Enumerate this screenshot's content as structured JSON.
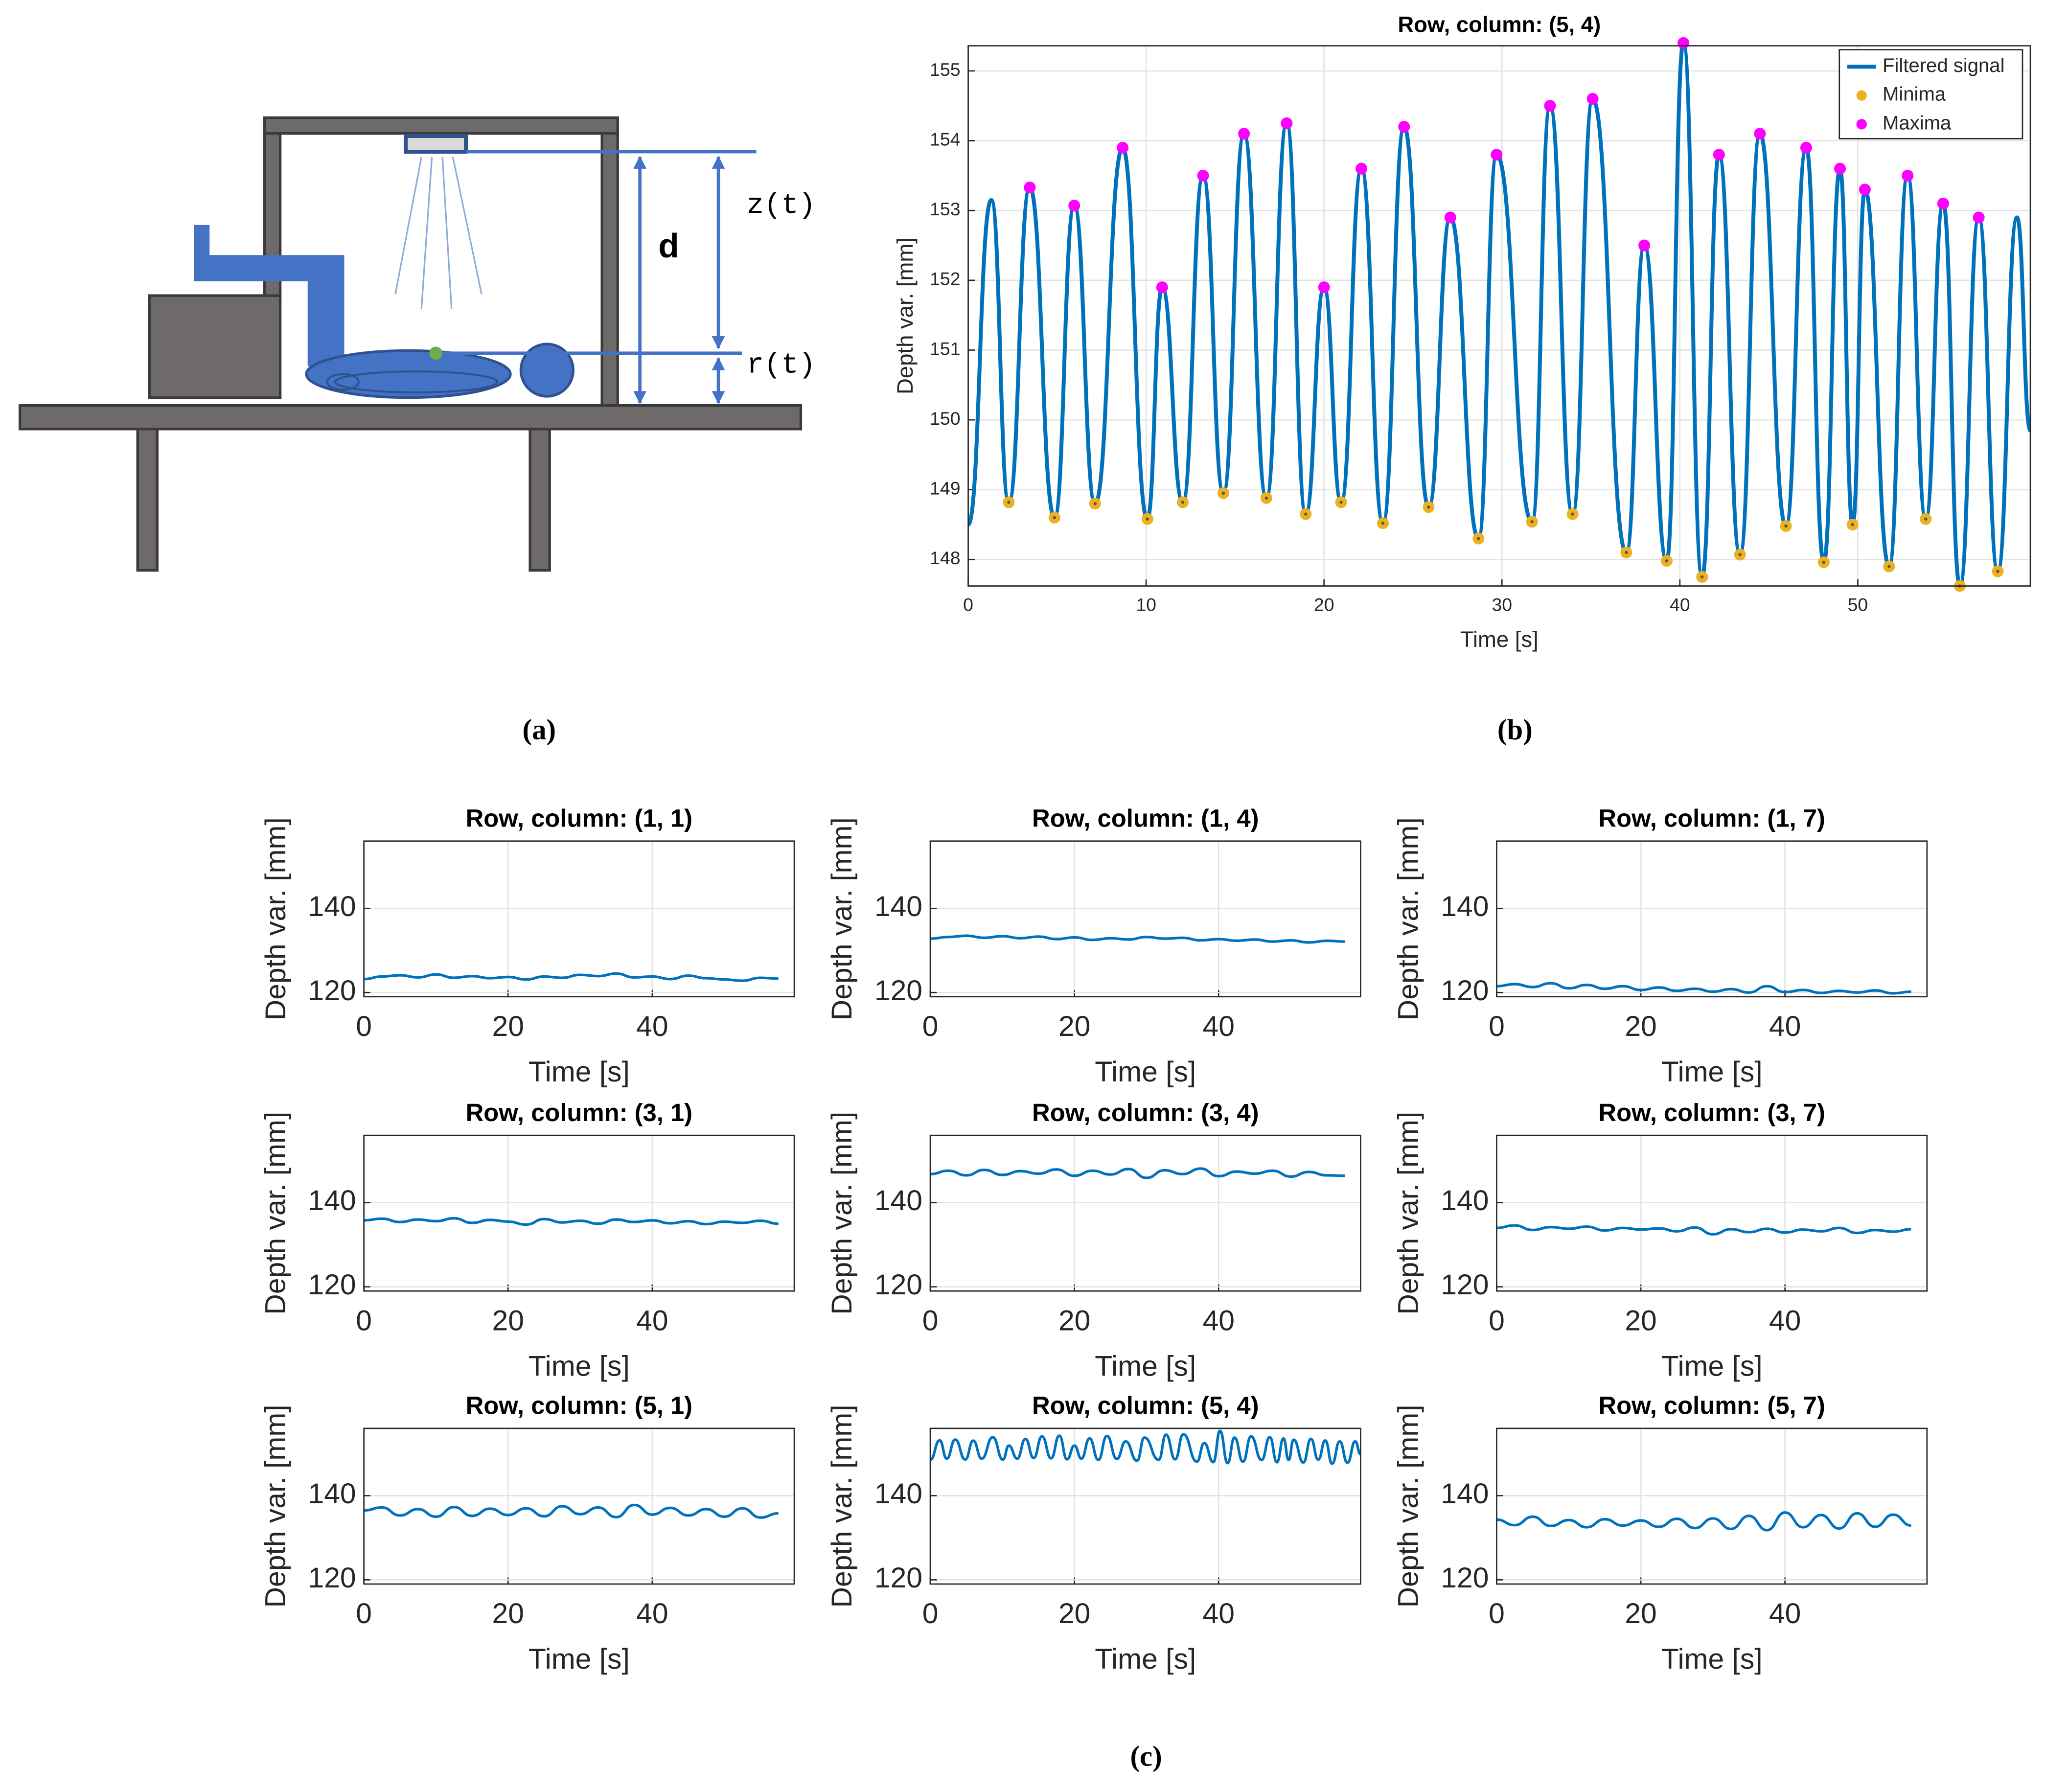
{
  "diagram": {
    "labels": [
      "d",
      "z(t)",
      "r(t)"
    ]
  },
  "panel_labels": [
    "(a)",
    "(b)",
    "(c)"
  ],
  "chart_data": [
    {
      "type": "line",
      "title": "Row, column: (5, 4)",
      "x_label": "Time [s]",
      "y_label": "Depth var. [mm]",
      "xlim": [
        0,
        59.7
      ],
      "ylim": [
        147.62,
        155.36
      ],
      "xticks": [
        0,
        10,
        20,
        30,
        40,
        50
      ],
      "yticks": [
        148,
        149,
        150,
        151,
        152,
        153,
        154,
        155
      ],
      "grid": true,
      "legend": "upper right",
      "series": [
        {
          "name": "Filtered signal",
          "style": "line",
          "color": "#0072BD",
          "x": [
            0,
            1.3,
            2.28,
            3.46,
            4.85,
            5.96,
            7.13,
            8.68,
            10.07,
            10.9,
            12.06,
            13.2,
            14.34,
            15.5,
            16.76,
            17.9,
            18.97,
            20.0,
            20.96,
            22.1,
            23.31,
            24.5,
            25.88,
            27.1,
            28.68,
            29.7,
            31.69,
            32.7,
            33.97,
            35.1,
            36.99,
            38.0,
            39.26,
            40.2,
            41.25,
            42.2,
            43.38,
            44.5,
            45.96,
            47.1,
            48.09,
            49.0,
            49.71,
            50.4,
            51.76,
            52.8,
            53.82,
            54.8,
            55.74,
            56.8,
            57.87,
            58.95,
            59.7
          ],
          "values": [
            148.5,
            153.15,
            148.82,
            153.33,
            148.6,
            153.07,
            148.8,
            153.9,
            148.58,
            151.9,
            148.82,
            153.5,
            148.95,
            154.1,
            148.88,
            154.25,
            148.65,
            151.9,
            148.82,
            153.6,
            148.52,
            154.2,
            148.75,
            152.9,
            148.3,
            153.8,
            148.54,
            154.5,
            148.65,
            154.6,
            148.1,
            152.5,
            147.98,
            155.4,
            147.75,
            153.8,
            148.07,
            154.1,
            148.48,
            153.9,
            147.96,
            153.6,
            148.5,
            153.3,
            147.9,
            153.5,
            148.58,
            153.1,
            147.62,
            152.9,
            147.83,
            152.9,
            149.85
          ]
        },
        {
          "name": "Minima",
          "style": "markers",
          "color": "#EDB120",
          "x": [
            2.28,
            4.85,
            7.13,
            10.07,
            12.06,
            14.34,
            16.76,
            18.97,
            20.96,
            23.31,
            25.88,
            28.68,
            31.69,
            33.97,
            36.99,
            39.26,
            41.25,
            43.38,
            45.96,
            48.09,
            49.71,
            51.76,
            53.82,
            55.74,
            57.87
          ],
          "values": [
            148.82,
            148.6,
            148.8,
            148.58,
            148.82,
            148.95,
            148.88,
            148.65,
            148.82,
            148.52,
            148.75,
            148.3,
            148.54,
            148.65,
            148.1,
            147.98,
            147.75,
            148.07,
            148.48,
            147.96,
            148.5,
            147.9,
            148.58,
            147.62,
            147.83
          ]
        },
        {
          "name": "Maxima",
          "style": "markers",
          "color": "#FF00FF",
          "x": [
            3.46,
            5.96,
            8.68,
            10.9,
            13.2,
            15.5,
            17.9,
            20.0,
            22.1,
            24.5,
            27.1,
            29.7,
            32.7,
            35.1,
            38.0,
            40.2,
            42.2,
            44.5,
            47.1,
            49.0,
            50.4,
            52.8,
            54.8,
            56.8
          ],
          "values": [
            153.33,
            153.07,
            153.9,
            151.9,
            153.5,
            154.1,
            154.25,
            151.9,
            153.6,
            154.2,
            152.9,
            153.8,
            154.5,
            154.6,
            152.5,
            155.4,
            153.8,
            154.1,
            153.9,
            153.6,
            153.3,
            153.5,
            153.1,
            152.9
          ]
        }
      ]
    },
    {
      "type": "line",
      "title": "Row, column: (1, 1)",
      "x_label": "Time [s]",
      "y_label": "Depth var. [mm]",
      "color": "#0072BD",
      "xlim": [
        0,
        59.7
      ],
      "ylim": [
        119,
        156
      ],
      "xticks": [
        0,
        20,
        40
      ],
      "yticks": [
        120,
        140
      ],
      "grid": true,
      "x": [
        0,
        2.5,
        5,
        7.5,
        10,
        12.5,
        15,
        17.5,
        20,
        22.5,
        25,
        27.5,
        30,
        32.5,
        35,
        37.5,
        40,
        42.5,
        45,
        47.5,
        50,
        52.5,
        55,
        57.5
      ],
      "values": [
        123.2,
        123.8,
        124.1,
        123.6,
        124.3,
        123.5,
        123.9,
        123.4,
        123.7,
        123.1,
        123.8,
        123.5,
        124.2,
        123.9,
        124.5,
        123.6,
        123.8,
        123.2,
        124.0,
        123.4,
        123.1,
        122.8,
        123.5,
        123.3
      ]
    },
    {
      "type": "line",
      "title": "Row, column: (1, 4)",
      "x_label": "Time [s]",
      "y_label": "Depth var. [mm]",
      "color": "#0072BD",
      "xlim": [
        0,
        59.7
      ],
      "ylim": [
        119,
        156
      ],
      "xticks": [
        0,
        20,
        40
      ],
      "yticks": [
        120,
        140
      ],
      "grid": true,
      "x": [
        0,
        2.5,
        5,
        7.5,
        10,
        12.5,
        15,
        17.5,
        20,
        22.5,
        25,
        27.5,
        30,
        32.5,
        35,
        37.5,
        40,
        42.5,
        45,
        47.5,
        50,
        52.5,
        55,
        57.5
      ],
      "values": [
        132.8,
        133.2,
        133.5,
        133.0,
        133.4,
        132.9,
        133.3,
        132.7,
        133.1,
        132.5,
        132.9,
        132.6,
        133.2,
        132.8,
        133.0,
        132.4,
        132.7,
        132.3,
        132.6,
        132.1,
        132.4,
        131.9,
        132.3,
        132.1
      ]
    },
    {
      "type": "line",
      "title": "Row, column: (1, 7)",
      "x_label": "Time [s]",
      "y_label": "Depth var. [mm]",
      "color": "#0072BD",
      "xlim": [
        0,
        59.7
      ],
      "ylim": [
        119,
        156
      ],
      "xticks": [
        0,
        20,
        40
      ],
      "yticks": [
        120,
        140
      ],
      "grid": true,
      "x": [
        0,
        2.5,
        5,
        7.5,
        10,
        12.5,
        15,
        17.5,
        20,
        22.5,
        25,
        27.5,
        30,
        32.5,
        35,
        37.5,
        40,
        42.5,
        45,
        47.5,
        50,
        52.5,
        55,
        57.5
      ],
      "values": [
        121.5,
        122.0,
        121.3,
        122.2,
        121.0,
        121.8,
        120.9,
        121.5,
        120.6,
        121.2,
        120.4,
        120.9,
        120.2,
        120.8,
        120.0,
        121.5,
        120.1,
        120.6,
        119.9,
        120.4,
        120.0,
        120.5,
        119.8,
        120.2
      ]
    },
    {
      "type": "line",
      "title": "Row, column: (3, 1)",
      "x_label": "Time [s]",
      "y_label": "Depth var. [mm]",
      "color": "#0072BD",
      "xlim": [
        0,
        59.7
      ],
      "ylim": [
        119,
        156
      ],
      "xticks": [
        0,
        20,
        40
      ],
      "yticks": [
        120,
        140
      ],
      "grid": true,
      "x": [
        0,
        2.5,
        5,
        7.5,
        10,
        12.5,
        15,
        17.5,
        20,
        22.5,
        25,
        27.5,
        30,
        32.5,
        35,
        37.5,
        40,
        42.5,
        45,
        47.5,
        50,
        52.5,
        55,
        57.5
      ],
      "values": [
        135.8,
        136.2,
        135.4,
        136.0,
        135.6,
        136.3,
        135.2,
        135.9,
        135.5,
        134.8,
        136.1,
        135.3,
        135.7,
        135.0,
        136.0,
        135.4,
        135.8,
        135.1,
        135.6,
        134.9,
        135.5,
        135.2,
        135.7,
        135.0
      ]
    },
    {
      "type": "line",
      "title": "Row, column: (3, 4)",
      "x_label": "Time [s]",
      "y_label": "Depth var. [mm]",
      "color": "#0072BD",
      "xlim": [
        0,
        59.7
      ],
      "ylim": [
        119,
        156
      ],
      "xticks": [
        0,
        20,
        40
      ],
      "yticks": [
        120,
        140
      ],
      "grid": true,
      "x": [
        0,
        2.5,
        5,
        7.5,
        10,
        12.5,
        15,
        17.5,
        20,
        22.5,
        25,
        27.5,
        30,
        32.5,
        35,
        37.5,
        40,
        42.5,
        45,
        47.5,
        50,
        52.5,
        55,
        57.5
      ],
      "values": [
        146.8,
        147.6,
        146.5,
        147.8,
        146.6,
        147.5,
        146.9,
        147.9,
        146.4,
        147.6,
        146.7,
        148.0,
        145.9,
        147.7,
        146.8,
        148.1,
        146.3,
        147.4,
        146.9,
        147.6,
        146.2,
        147.3,
        146.5,
        146.4
      ]
    },
    {
      "type": "line",
      "title": "Row, column: (3, 7)",
      "x_label": "Time [s]",
      "y_label": "Depth var. [mm]",
      "color": "#0072BD",
      "xlim": [
        0,
        59.7
      ],
      "ylim": [
        119,
        156
      ],
      "xticks": [
        0,
        20,
        40
      ],
      "yticks": [
        120,
        140
      ],
      "grid": true,
      "x": [
        0,
        2.5,
        5,
        7.5,
        10,
        12.5,
        15,
        17.5,
        20,
        22.5,
        25,
        27.5,
        30,
        32.5,
        35,
        37.5,
        40,
        42.5,
        45,
        47.5,
        50,
        52.5,
        55,
        57.5
      ],
      "values": [
        134.0,
        134.6,
        133.5,
        134.2,
        133.8,
        134.3,
        133.4,
        134.0,
        133.6,
        133.9,
        133.2,
        134.1,
        132.5,
        133.7,
        133.0,
        133.8,
        132.9,
        133.6,
        133.2,
        134.0,
        132.8,
        133.5,
        133.1,
        133.7
      ]
    },
    {
      "type": "line",
      "title": "Row, column: (5, 1)",
      "x_label": "Time [s]",
      "y_label": "Depth var. [mm]",
      "color": "#0072BD",
      "xlim": [
        0,
        59.7
      ],
      "ylim": [
        119,
        156
      ],
      "xticks": [
        0,
        20,
        40
      ],
      "yticks": [
        120,
        140
      ],
      "grid": true,
      "x": [
        0,
        2.5,
        5,
        7.5,
        10,
        12.5,
        15,
        17.5,
        20,
        22.5,
        25,
        27.5,
        30,
        32.5,
        35,
        37.5,
        40,
        42.5,
        45,
        47.5,
        50,
        52.5,
        55,
        57.5
      ],
      "values": [
        136.5,
        137.2,
        135.3,
        136.8,
        135.0,
        137.3,
        135.2,
        136.9,
        135.4,
        137.0,
        135.1,
        137.5,
        135.6,
        137.2,
        134.9,
        137.8,
        135.5,
        137.1,
        135.3,
        136.8,
        135.0,
        137.0,
        134.8,
        135.8
      ]
    },
    {
      "type": "line",
      "title": "Row, column: (5, 4)",
      "x_label": "Time [s]",
      "y_label": "Depth var. [mm]",
      "color": "#0072BD",
      "xlim": [
        0,
        59.7
      ],
      "ylim": [
        119,
        156
      ],
      "xticks": [
        0,
        20,
        40
      ],
      "yticks": [
        120,
        140
      ],
      "grid": true,
      "x": [
        0,
        1.3,
        2.28,
        3.46,
        4.85,
        5.96,
        7.13,
        8.68,
        10.07,
        10.9,
        12.06,
        13.2,
        14.34,
        15.5,
        16.76,
        17.9,
        18.97,
        20.0,
        20.96,
        22.1,
        23.31,
        24.5,
        25.88,
        27.1,
        28.68,
        29.7,
        31.69,
        32.7,
        33.97,
        35.1,
        36.99,
        38.0,
        39.26,
        40.2,
        41.25,
        42.2,
        43.38,
        44.5,
        45.96,
        47.1,
        48.09,
        49.0,
        49.71,
        50.4,
        51.76,
        52.8,
        53.82,
        54.8,
        55.74,
        56.8,
        57.87,
        58.95,
        59.7
      ],
      "values": [
        148.5,
        153.15,
        148.82,
        153.33,
        148.6,
        153.07,
        148.8,
        153.9,
        148.58,
        151.9,
        148.82,
        153.5,
        148.95,
        154.1,
        148.88,
        154.25,
        148.65,
        151.9,
        148.82,
        153.6,
        148.52,
        154.2,
        148.75,
        152.9,
        148.3,
        153.8,
        148.54,
        154.5,
        148.65,
        154.6,
        148.1,
        152.5,
        147.98,
        155.4,
        147.75,
        153.8,
        148.07,
        154.1,
        148.48,
        153.9,
        147.96,
        153.6,
        148.5,
        153.3,
        147.9,
        153.5,
        148.58,
        153.1,
        147.62,
        152.9,
        147.83,
        152.9,
        149.85
      ]
    },
    {
      "type": "line",
      "title": "Row, column: (5, 7)",
      "x_label": "Time [s]",
      "y_label": "Depth var. [mm]",
      "color": "#0072BD",
      "xlim": [
        0,
        59.7
      ],
      "ylim": [
        119,
        156
      ],
      "xticks": [
        0,
        20,
        40
      ],
      "yticks": [
        120,
        140
      ],
      "grid": true,
      "x": [
        0,
        2.5,
        5,
        7.5,
        10,
        12.5,
        15,
        17.5,
        20,
        22.5,
        25,
        27.5,
        30,
        32.5,
        35,
        37.5,
        40,
        42.5,
        45,
        47.5,
        50,
        52.5,
        55,
        57.5
      ],
      "values": [
        134.3,
        133.0,
        135.0,
        132.8,
        134.2,
        132.5,
        134.4,
        132.9,
        134.1,
        132.6,
        134.5,
        132.3,
        134.6,
        132.1,
        135.2,
        131.8,
        136.0,
        132.5,
        135.4,
        132.2,
        135.8,
        132.6,
        135.5,
        132.9
      ]
    }
  ]
}
